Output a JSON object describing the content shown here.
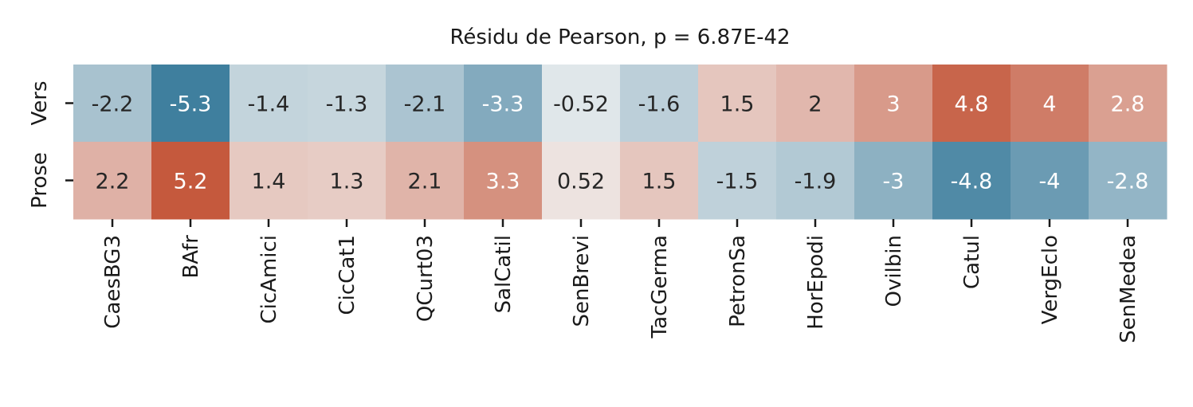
{
  "chart_data": {
    "type": "heatmap",
    "title": "Résidu de Pearson, p = 6.87E-42",
    "rows": [
      "Vers",
      "Prose"
    ],
    "columns": [
      "CaesBG3",
      "BAfr",
      "CicAmici",
      "CicCat1",
      "QCurt03",
      "SalCatil",
      "SenBrevi",
      "TacGerma",
      "PetronSa",
      "HorEpodi",
      "Ovilbin",
      "Catul",
      "VergEclo",
      "SenMedea"
    ],
    "values": [
      [
        -2.2,
        -5.3,
        -1.4,
        -1.3,
        -2.1,
        -3.3,
        -0.52,
        -1.6,
        1.5,
        2,
        3,
        4.8,
        4,
        2.8
      ],
      [
        2.2,
        5.2,
        1.4,
        1.3,
        2.1,
        3.3,
        0.52,
        1.5,
        -1.5,
        -1.9,
        -3,
        -4.8,
        -4,
        -2.8
      ]
    ],
    "value_labels": [
      [
        "-2.2",
        "-5.3",
        "-1.4",
        "-1.3",
        "-2.1",
        "-3.3",
        "-0.52",
        "-1.6",
        "1.5",
        "2",
        "3",
        "4.8",
        "4",
        "2.8"
      ],
      [
        "2.2",
        "5.2",
        "1.4",
        "1.3",
        "2.1",
        "3.3",
        "0.52",
        "1.5",
        "-1.5",
        "-1.9",
        "-3",
        "-4.8",
        "-4",
        "-2.8"
      ]
    ],
    "color_range": [
      -5.3,
      5.3
    ],
    "colormap": {
      "negative": "#3f7f9e",
      "neutral": "#f2f2f2",
      "positive": "#c4563a"
    },
    "grid": false,
    "legend": "none"
  }
}
